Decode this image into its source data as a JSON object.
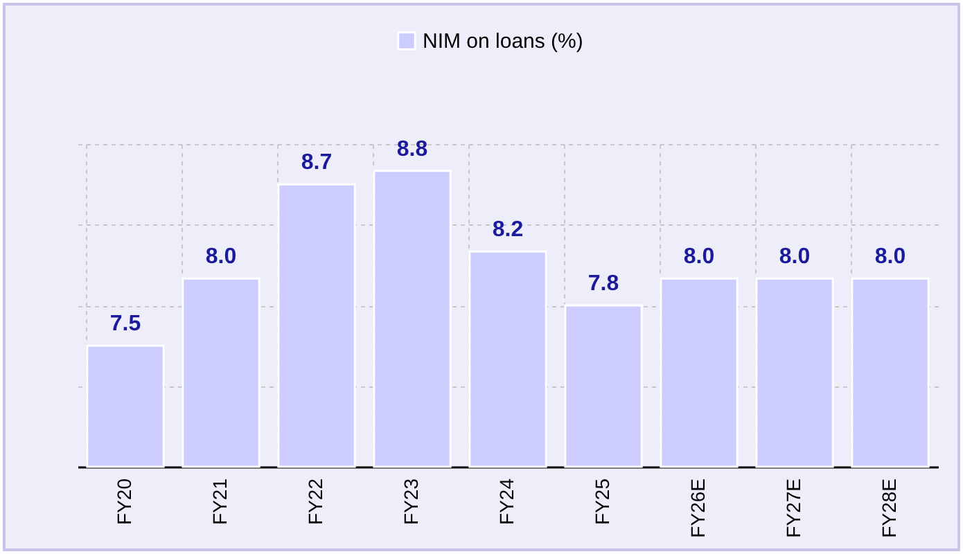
{
  "chart_data": {
    "type": "bar",
    "categories": [
      "FY20",
      "FY21",
      "FY22",
      "FY23",
      "FY24",
      "FY25",
      "FY26E",
      "FY27E",
      "FY28E"
    ],
    "series": [
      {
        "name": "NIM on loans (%)",
        "color": "#ccccff",
        "values": [
          7.5,
          8.0,
          8.7,
          8.8,
          8.2,
          7.8,
          8.0,
          8.0,
          8.0
        ],
        "value_labels": [
          "7.5",
          "8.0",
          "8.7",
          "8.8",
          "8.2",
          "7.8",
          "8.0",
          "8.0",
          "8.0"
        ]
      }
    ],
    "ylim": [
      6.6,
      9.0
    ],
    "yticks": [
      {
        "value": 6.6,
        "label": null
      },
      {
        "value": 7.2,
        "label": null
      },
      {
        "value": 7.8,
        "label": null
      },
      {
        "value": 8.4,
        "label": null
      },
      {
        "value": 9.0,
        "label": null
      }
    ],
    "tick_labels": "x",
    "grid": true,
    "legend": "top"
  }
}
